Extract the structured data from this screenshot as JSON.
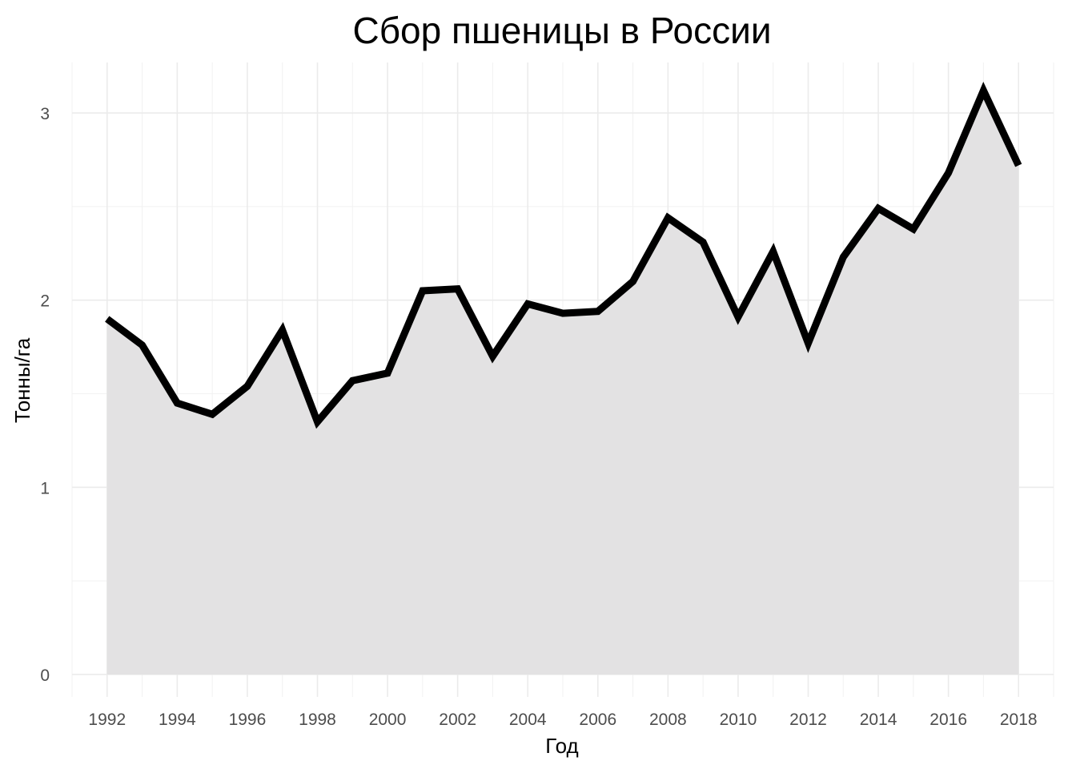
{
  "chart_data": {
    "type": "area",
    "title": "Сбор пшеницы в России",
    "xlabel": "Год",
    "ylabel": "Тонны/га",
    "x": [
      1992,
      1993,
      1994,
      1995,
      1996,
      1997,
      1998,
      1999,
      2000,
      2001,
      2002,
      2003,
      2004,
      2005,
      2006,
      2007,
      2008,
      2009,
      2010,
      2011,
      2012,
      2013,
      2014,
      2015,
      2016,
      2017,
      2018
    ],
    "values": [
      1.9,
      1.76,
      1.45,
      1.39,
      1.54,
      1.84,
      1.35,
      1.57,
      1.61,
      2.05,
      2.06,
      1.7,
      1.98,
      1.93,
      1.94,
      2.1,
      2.44,
      2.31,
      1.91,
      2.26,
      1.77,
      2.23,
      2.49,
      2.38,
      2.68,
      3.12,
      2.72
    ],
    "xlim": [
      1991,
      2019
    ],
    "ylim": [
      -0.12,
      3.27
    ],
    "xticks": [
      1992,
      1994,
      1996,
      1998,
      2000,
      2002,
      2004,
      2006,
      2008,
      2010,
      2012,
      2014,
      2016,
      2018
    ],
    "xtick_labels": [
      "1992",
      "1994",
      "1996",
      "1998",
      "2000",
      "2002",
      "2004",
      "2006",
      "2008",
      "2010",
      "2012",
      "2014",
      "2016",
      "2018"
    ],
    "yticks": [
      0,
      1,
      2,
      3
    ],
    "ytick_labels": [
      "0",
      "1",
      "2",
      "3"
    ],
    "grid": true,
    "legend": "none",
    "colors": {
      "area_fill": "#e3e2e3",
      "line": "#000000",
      "grid_major": "#ebebeb",
      "grid_minor": "#f2f2f2",
      "tick_text": "#4d4d4d"
    }
  }
}
